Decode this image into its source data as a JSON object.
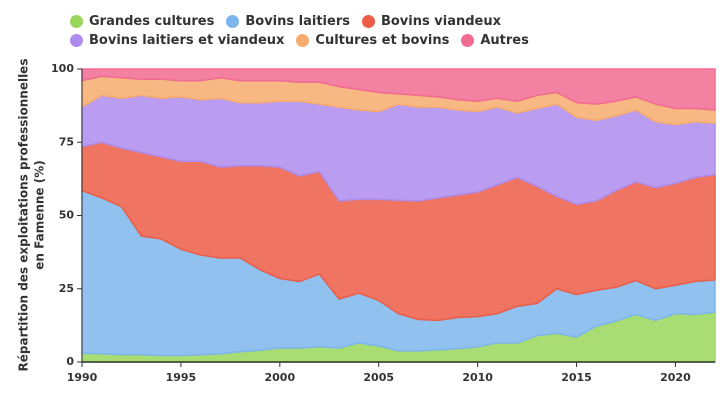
{
  "chart_data": {
    "type": "stacked_area",
    "ylabel": [
      "Répartition des exploitations professionnelles",
      "en Famenne (%)"
    ],
    "x": [
      1990,
      1991,
      1992,
      1993,
      1994,
      1995,
      1996,
      1997,
      1998,
      1999,
      2000,
      2001,
      2002,
      2003,
      2004,
      2005,
      2006,
      2007,
      2008,
      2009,
      2010,
      2011,
      2012,
      2013,
      2014,
      2015,
      2016,
      2017,
      2018,
      2019,
      2020,
      2021,
      2022
    ],
    "xlim": [
      1990,
      2022
    ],
    "xticks": [
      1990,
      1995,
      2000,
      2005,
      2010,
      2015,
      2020
    ],
    "ylim": [
      0,
      100
    ],
    "yticks": [
      0,
      25,
      50,
      75,
      100
    ],
    "grid": false,
    "legend": "top",
    "series": [
      {
        "name": "Grandes cultures",
        "color": "#9bd65c",
        "values": [
          3,
          2.8,
          2.5,
          2.5,
          2.2,
          2.2,
          2.5,
          2.8,
          3.5,
          4,
          4.8,
          4.8,
          5.2,
          4.8,
          6.5,
          5.5,
          3.8,
          3.8,
          4.2,
          4.5,
          5.2,
          6.5,
          6.5,
          9,
          9.8,
          8.5,
          12.2,
          14,
          16.2,
          14.2,
          16.5,
          16.2,
          17
        ]
      },
      {
        "name": "Bovins laitiers",
        "color": "#7cb6ec",
        "values": [
          55.5,
          53.2,
          50.5,
          40.5,
          39.8,
          36.3,
          34,
          32.7,
          32,
          27.5,
          23.7,
          22.7,
          24.8,
          16.7,
          17,
          15.5,
          12.7,
          10.7,
          10,
          10.7,
          10.3,
          10,
          12.5,
          11,
          15.2,
          14.5,
          12.3,
          11.5,
          11.6,
          10.8,
          9.7,
          11.3,
          11
        ]
      },
      {
        "name": "Bovins viandeux",
        "color": "#ec5d47",
        "values": [
          15,
          19,
          20,
          28.5,
          28,
          30,
          32,
          31,
          31.5,
          35.5,
          38,
          36,
          35,
          33.5,
          32,
          34.5,
          38.7,
          40.5,
          41.8,
          41.8,
          42.5,
          44,
          44,
          40,
          31.5,
          30.8,
          30.5,
          33,
          33.7,
          34.5,
          34.8,
          35.5,
          36
        ]
      },
      {
        "name": "Bovins laitiers et viandeux",
        "color": "#ae8ced",
        "values": [
          13.5,
          16,
          17,
          19.5,
          20,
          22,
          21,
          23.5,
          21.5,
          21.5,
          22.5,
          25.5,
          23,
          32,
          30.5,
          30,
          32.8,
          32,
          31,
          29,
          27.5,
          26.5,
          22,
          26.5,
          31.5,
          29.7,
          27.5,
          25.5,
          24.5,
          22.5,
          20,
          19,
          17.5
        ]
      },
      {
        "name": "Cultures et bovins",
        "color": "#f7ac6e",
        "values": [
          9,
          6.5,
          7,
          5.5,
          6.5,
          5.5,
          6.5,
          7,
          7.5,
          7.5,
          7,
          6.5,
          7.5,
          7,
          7,
          6.5,
          3.5,
          4,
          3.5,
          3.5,
          3.5,
          3,
          4,
          4.5,
          4,
          5,
          5.5,
          5,
          4.5,
          6,
          5.5,
          4.5,
          4.5
        ]
      },
      {
        "name": "Autres",
        "color": "#f16b92",
        "values": [
          4,
          2.5,
          3,
          3.5,
          3.5,
          4,
          4,
          3,
          4,
          4,
          4,
          4.5,
          4.5,
          6,
          7,
          8,
          8.5,
          9,
          9.5,
          10.5,
          11,
          10,
          11,
          9,
          8,
          11.5,
          12,
          11,
          9.5,
          12,
          13.5,
          13.5,
          14
        ]
      }
    ]
  }
}
